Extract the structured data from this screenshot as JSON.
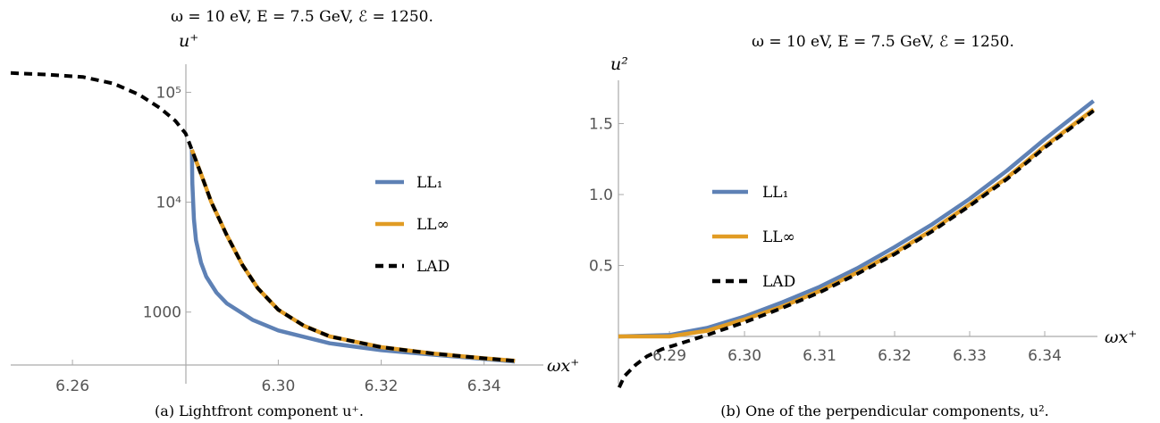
{
  "chart_data": [
    {
      "type": "line",
      "title": "ω = 10 eV, E = 7.5 GeV, ℰ = 1250.",
      "xlabel": "ωx⁺",
      "ylabel": "u⁺",
      "yscale": "log",
      "xlim": [
        6.248,
        6.347
      ],
      "ylim": [
        330,
        180000
      ],
      "x_ticks": [
        "6.26",
        "6.30",
        "6.32",
        "6.34"
      ],
      "y_ticks": [
        "1000",
        "10⁴",
        "10⁵"
      ],
      "y_tick_values": [
        1000,
        10000,
        100000
      ],
      "x_tick_values": [
        6.26,
        6.3,
        6.32,
        6.34
      ],
      "legend_position": "right",
      "caption": "(a)  Lightfront component u⁺.",
      "series": [
        {
          "name": "LL₁",
          "color": "#5e81b5",
          "style": "solid",
          "x": [
            6.2832,
            6.2833,
            6.2836,
            6.284,
            6.285,
            6.286,
            6.288,
            6.29,
            6.295,
            6.3,
            6.31,
            6.32,
            6.33,
            6.34,
            6.346
          ],
          "y": [
            30000,
            15000,
            7000,
            4500,
            2800,
            2100,
            1500,
            1200,
            850,
            680,
            520,
            450,
            410,
            375,
            355
          ]
        },
        {
          "name": "LL∞",
          "color": "#e19c24",
          "style": "solid",
          "x": [
            6.2832,
            6.285,
            6.287,
            6.29,
            6.293,
            6.296,
            6.3,
            6.305,
            6.31,
            6.32,
            6.33,
            6.34,
            6.346
          ],
          "y": [
            30000,
            18000,
            10000,
            5000,
            2700,
            1650,
            1050,
            750,
            600,
            480,
            420,
            380,
            360
          ]
        },
        {
          "name": "LAD",
          "color": "#000000",
          "style": "dashed",
          "x": [
            6.248,
            6.255,
            6.262,
            6.268,
            6.273,
            6.277,
            6.28,
            6.282,
            6.2832,
            6.285,
            6.287,
            6.29,
            6.293,
            6.296,
            6.3,
            6.305,
            6.31,
            6.32,
            6.33,
            6.34,
            6.346
          ],
          "y": [
            150000,
            145000,
            138000,
            120000,
            95000,
            72000,
            55000,
            42000,
            30000,
            18000,
            10000,
            5000,
            2700,
            1650,
            1050,
            750,
            600,
            480,
            420,
            380,
            360
          ]
        }
      ]
    },
    {
      "type": "line",
      "title": "ω = 10 eV, E = 7.5 GeV, ℰ = 1250.",
      "xlabel": "ωx⁺",
      "ylabel": "u²",
      "yscale": "linear",
      "xlim": [
        6.2832,
        6.3475
      ],
      "ylim": [
        -0.45,
        1.85
      ],
      "x_ticks": [
        "6.29",
        "6.30",
        "6.31",
        "6.32",
        "6.33",
        "6.34"
      ],
      "x_tick_values": [
        6.29,
        6.3,
        6.31,
        6.32,
        6.33,
        6.34
      ],
      "y_ticks": [
        "0.5",
        "1.0",
        "1.5"
      ],
      "y_tick_values": [
        0.5,
        1.0,
        1.5
      ],
      "legend_position": "left",
      "caption": "(b)  One of the perpendicular components, u².",
      "series": [
        {
          "name": "LL₁",
          "color": "#5e81b5",
          "style": "solid",
          "x": [
            6.2832,
            6.29,
            6.295,
            6.3,
            6.305,
            6.31,
            6.315,
            6.32,
            6.325,
            6.33,
            6.335,
            6.34,
            6.3465
          ],
          "y": [
            0.0,
            0.01,
            0.06,
            0.14,
            0.24,
            0.35,
            0.48,
            0.63,
            0.79,
            0.97,
            1.17,
            1.39,
            1.66
          ]
        },
        {
          "name": "LL∞",
          "color": "#e19c24",
          "style": "solid",
          "x": [
            6.2832,
            6.29,
            6.295,
            6.3,
            6.305,
            6.31,
            6.315,
            6.32,
            6.325,
            6.33,
            6.335,
            6.34,
            6.3465
          ],
          "y": [
            0.0,
            0.0,
            0.04,
            0.12,
            0.21,
            0.32,
            0.45,
            0.59,
            0.75,
            0.93,
            1.12,
            1.34,
            1.6
          ]
        },
        {
          "name": "LAD",
          "color": "#000000",
          "style": "dashed",
          "x": [
            6.2833,
            6.284,
            6.2855,
            6.287,
            6.289,
            6.292,
            6.295,
            6.3,
            6.305,
            6.31,
            6.315,
            6.32,
            6.325,
            6.33,
            6.335,
            6.34,
            6.3465
          ],
          "y": [
            -0.36,
            -0.28,
            -0.2,
            -0.14,
            -0.09,
            -0.04,
            0.01,
            0.1,
            0.2,
            0.31,
            0.44,
            0.58,
            0.74,
            0.92,
            1.11,
            1.33,
            1.59
          ]
        }
      ]
    }
  ]
}
